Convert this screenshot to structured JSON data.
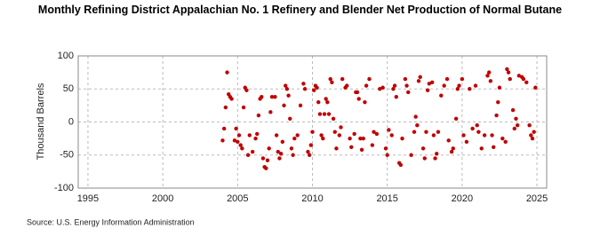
{
  "chart_data": {
    "type": "scatter",
    "title": "Monthly Refining District Appalachian No. 1 Refinery and Blender Net Production of Normal Butane",
    "y_label": "Thousand Barrels",
    "source": "Source: U.S. Energy Information Administration",
    "color": "#c00000",
    "grid": true,
    "xlim": [
      1994.35,
      2025.65
    ],
    "ylim": [
      -100,
      100
    ],
    "xticks": [
      1995,
      2000,
      2005,
      2010,
      2015,
      2020,
      2025
    ],
    "yticks": [
      100,
      50,
      0,
      -50,
      -100
    ],
    "x": [
      2004.0,
      2004.1,
      2004.2,
      2004.3,
      2004.4,
      2004.5,
      2004.6,
      2004.8,
      2004.9,
      2005.0,
      2005.1,
      2005.2,
      2005.3,
      2005.4,
      2005.5,
      2005.6,
      2005.7,
      2005.8,
      2006.0,
      2006.2,
      2006.3,
      2006.4,
      2006.5,
      2006.6,
      2006.7,
      2006.8,
      2006.9,
      2007.0,
      2007.1,
      2007.2,
      2007.3,
      2007.5,
      2007.6,
      2007.7,
      2007.8,
      2007.9,
      2008.0,
      2008.1,
      2008.2,
      2008.3,
      2008.4,
      2008.5,
      2008.6,
      2008.7,
      2008.8,
      2009.0,
      2009.2,
      2009.4,
      2009.5,
      2009.7,
      2009.8,
      2009.9,
      2010.0,
      2010.1,
      2010.2,
      2010.3,
      2010.4,
      2010.5,
      2010.6,
      2010.7,
      2010.8,
      2010.9,
      2011.0,
      2011.1,
      2011.2,
      2011.3,
      2011.4,
      2011.5,
      2011.6,
      2011.8,
      2011.9,
      2012.0,
      2012.2,
      2012.3,
      2012.5,
      2012.6,
      2012.8,
      2012.9,
      2013.0,
      2013.1,
      2013.2,
      2013.3,
      2013.4,
      2013.5,
      2013.6,
      2013.8,
      2014.0,
      2014.1,
      2014.3,
      2014.5,
      2014.7,
      2014.9,
      2015.0,
      2015.1,
      2015.3,
      2015.4,
      2015.5,
      2015.6,
      2015.8,
      2015.9,
      2016.0,
      2016.2,
      2016.3,
      2016.4,
      2016.6,
      2016.8,
      2016.9,
      2017.0,
      2017.1,
      2017.2,
      2017.4,
      2017.5,
      2017.6,
      2017.7,
      2017.8,
      2018.0,
      2018.1,
      2018.2,
      2018.3,
      2018.4,
      2018.6,
      2018.8,
      2019.0,
      2019.1,
      2019.3,
      2019.4,
      2019.6,
      2019.7,
      2019.8,
      2020.0,
      2020.1,
      2020.3,
      2020.5,
      2020.7,
      2020.9,
      2021.0,
      2021.1,
      2021.3,
      2021.5,
      2021.7,
      2021.8,
      2021.9,
      2022.0,
      2022.1,
      2022.3,
      2022.4,
      2022.5,
      2022.7,
      2022.9,
      2023.0,
      2023.1,
      2023.2,
      2023.4,
      2023.5,
      2023.6,
      2023.7,
      2023.8,
      2024.0,
      2024.1,
      2024.3,
      2024.5,
      2024.6,
      2024.7,
      2024.8,
      2024.9
    ],
    "values": [
      -28,
      -10,
      22,
      75,
      42,
      38,
      35,
      -28,
      -10,
      -30,
      -20,
      -35,
      -40,
      22,
      52,
      48,
      -50,
      -20,
      -45,
      -25,
      -18,
      10,
      35,
      38,
      -55,
      -68,
      -70,
      -58,
      -40,
      15,
      38,
      38,
      -20,
      -45,
      -55,
      -48,
      -30,
      25,
      55,
      50,
      40,
      5,
      -40,
      -50,
      -25,
      -20,
      25,
      58,
      50,
      -45,
      -50,
      -35,
      -15,
      48,
      55,
      52,
      30,
      12,
      -20,
      -25,
      12,
      35,
      30,
      12,
      65,
      60,
      5,
      -15,
      -40,
      -20,
      -8,
      65,
      52,
      55,
      -25,
      -38,
      -18,
      45,
      45,
      35,
      -25,
      -42,
      -25,
      30,
      55,
      65,
      -35,
      -15,
      -18,
      50,
      52,
      -40,
      -50,
      -12,
      -20,
      50,
      55,
      38,
      -62,
      -65,
      -25,
      65,
      55,
      45,
      -50,
      -15,
      8,
      -5,
      62,
      68,
      -40,
      -55,
      -15,
      48,
      58,
      60,
      -20,
      -55,
      -48,
      -15,
      40,
      55,
      65,
      -28,
      -45,
      -40,
      5,
      50,
      55,
      65,
      -20,
      -30,
      50,
      -10,
      55,
      -5,
      -15,
      -40,
      -20,
      70,
      75,
      62,
      -20,
      -38,
      10,
      30,
      52,
      -25,
      -30,
      80,
      75,
      65,
      18,
      -10,
      5,
      -5,
      70,
      68,
      65,
      60,
      -5,
      -20,
      -25,
      -15,
      52
    ]
  }
}
